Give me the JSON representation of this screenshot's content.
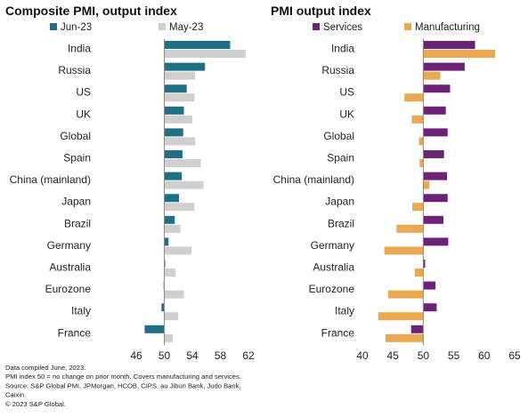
{
  "chart_data": [
    {
      "type": "bar",
      "orientation": "horizontal",
      "title": "Composite PMI, output index",
      "categories": [
        "India",
        "Russia",
        "US",
        "UK",
        "Global",
        "Spain",
        "China (mainland)",
        "Japan",
        "Brazil",
        "Germany",
        "Australia",
        "Eurozone",
        "Italy",
        "France"
      ],
      "series": [
        {
          "name": "Jun-23",
          "color": "#1f6f86",
          "values": [
            59.4,
            55.8,
            53.2,
            52.8,
            52.7,
            52.6,
            52.5,
            52.1,
            51.5,
            50.6,
            50.1,
            49.9,
            49.6,
            47.2
          ]
        },
        {
          "name": "May-23",
          "color": "#cfcfcf",
          "values": [
            61.6,
            54.4,
            54.3,
            54.0,
            54.4,
            55.2,
            55.6,
            54.3,
            52.3,
            53.9,
            51.6,
            52.8,
            52.0,
            51.2
          ]
        }
      ],
      "xlim": [
        46,
        62
      ],
      "xticks": [
        46,
        50,
        54,
        58,
        62
      ],
      "baseline": 50,
      "legend": "top"
    },
    {
      "type": "bar",
      "orientation": "horizontal",
      "title": "PMI output index",
      "categories": [
        "India",
        "Russia",
        "US",
        "UK",
        "Global",
        "Spain",
        "China (mainland)",
        "Japan",
        "Brazil",
        "Germany",
        "Australia",
        "Eurozone",
        "Italy",
        "France"
      ],
      "series": [
        {
          "name": "Services",
          "color": "#6b2277",
          "values": [
            58.5,
            56.8,
            54.4,
            53.7,
            54.0,
            53.4,
            53.9,
            54.0,
            53.3,
            54.1,
            50.3,
            52.0,
            52.2,
            48.0
          ]
        },
        {
          "name": "Manufacturing",
          "color": "#eaa851",
          "values": [
            61.8,
            52.8,
            46.9,
            48.1,
            49.3,
            49.4,
            51.0,
            48.2,
            45.6,
            43.6,
            48.6,
            44.2,
            42.6,
            43.8
          ]
        }
      ],
      "xlim": [
        40,
        65
      ],
      "xticks": [
        40,
        45,
        50,
        55,
        60,
        65
      ],
      "baseline": 50,
      "legend": "top"
    }
  ],
  "footnotes": [
    "Data compiled June, 2023.",
    "PMI index 50 = no change on prior month. Covers manufacturing and services.",
    "Source: S&P Global PMI, JPMorgan, HCOB, CIPS, au Jibun Bank, Judo Bank,",
    "Caixin.",
    "© 2023 S&P Global."
  ]
}
